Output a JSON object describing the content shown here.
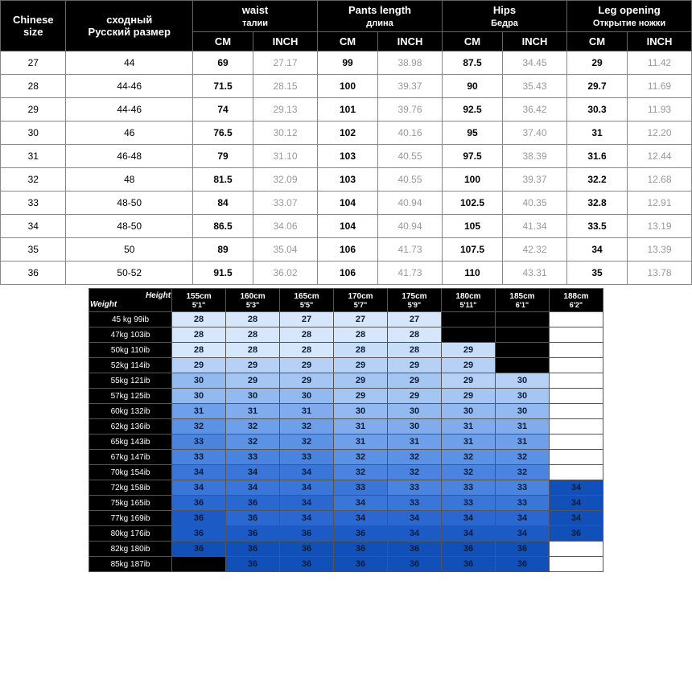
{
  "sizeTable": {
    "headers": {
      "chinese": "Chinese\nsize",
      "russian_top": "сходный",
      "russian_bot": "Русский размер",
      "groups": [
        {
          "top": "waist",
          "bot": "талии",
          "cm": "CM",
          "inch": "INCH"
        },
        {
          "top": "Pants length",
          "bot": "длина",
          "cm": "CM",
          "inch": "INCH"
        },
        {
          "top": "Hips",
          "bot": "Бедра",
          "cm": "CM",
          "inch": "INCH"
        },
        {
          "top": "Leg opening",
          "bot": "Открытие ножки",
          "cm": "CM",
          "inch": "INCH"
        }
      ]
    },
    "rows": [
      {
        "ch": "27",
        "ru": "44",
        "waist": {
          "cm": "69",
          "in": "27.17"
        },
        "len": {
          "cm": "99",
          "in": "38.98"
        },
        "hips": {
          "cm": "87.5",
          "in": "34.45"
        },
        "leg": {
          "cm": "29",
          "in": "11.42"
        }
      },
      {
        "ch": "28",
        "ru": "44-46",
        "waist": {
          "cm": "71.5",
          "in": "28.15"
        },
        "len": {
          "cm": "100",
          "in": "39.37"
        },
        "hips": {
          "cm": "90",
          "in": "35.43"
        },
        "leg": {
          "cm": "29.7",
          "in": "11.69"
        }
      },
      {
        "ch": "29",
        "ru": "44-46",
        "waist": {
          "cm": "74",
          "in": "29.13"
        },
        "len": {
          "cm": "101",
          "in": "39.76"
        },
        "hips": {
          "cm": "92.5",
          "in": "36.42"
        },
        "leg": {
          "cm": "30.3",
          "in": "11.93"
        }
      },
      {
        "ch": "30",
        "ru": "46",
        "waist": {
          "cm": "76.5",
          "in": "30.12"
        },
        "len": {
          "cm": "102",
          "in": "40.16"
        },
        "hips": {
          "cm": "95",
          "in": "37.40"
        },
        "leg": {
          "cm": "31",
          "in": "12.20"
        }
      },
      {
        "ch": "31",
        "ru": "46-48",
        "waist": {
          "cm": "79",
          "in": "31.10"
        },
        "len": {
          "cm": "103",
          "in": "40.55"
        },
        "hips": {
          "cm": "97.5",
          "in": "38.39"
        },
        "leg": {
          "cm": "31.6",
          "in": "12.44"
        }
      },
      {
        "ch": "32",
        "ru": "48",
        "waist": {
          "cm": "81.5",
          "in": "32.09"
        },
        "len": {
          "cm": "103",
          "in": "40.55"
        },
        "hips": {
          "cm": "100",
          "in": "39.37"
        },
        "leg": {
          "cm": "32.2",
          "in": "12.68"
        }
      },
      {
        "ch": "33",
        "ru": "48-50",
        "waist": {
          "cm": "84",
          "in": "33.07"
        },
        "len": {
          "cm": "104",
          "in": "40.94"
        },
        "hips": {
          "cm": "102.5",
          "in": "40.35"
        },
        "leg": {
          "cm": "32.8",
          "in": "12.91"
        }
      },
      {
        "ch": "34",
        "ru": "48-50",
        "waist": {
          "cm": "86.5",
          "in": "34.06"
        },
        "len": {
          "cm": "104",
          "in": "40.94"
        },
        "hips": {
          "cm": "105",
          "in": "41.34"
        },
        "leg": {
          "cm": "33.5",
          "in": "13.19"
        }
      },
      {
        "ch": "35",
        "ru": "50",
        "waist": {
          "cm": "89",
          "in": "35.04"
        },
        "len": {
          "cm": "106",
          "in": "41.73"
        },
        "hips": {
          "cm": "107.5",
          "in": "42.32"
        },
        "leg": {
          "cm": "34",
          "in": "13.39"
        }
      },
      {
        "ch": "36",
        "ru": "50-52",
        "waist": {
          "cm": "91.5",
          "in": "36.02"
        },
        "len": {
          "cm": "106",
          "in": "41.73"
        },
        "hips": {
          "cm": "110",
          "in": "43.31"
        },
        "leg": {
          "cm": "35",
          "in": "13.78"
        }
      }
    ]
  },
  "recTable": {
    "corner": {
      "t1": "Height",
      "t2": "Weight"
    },
    "heights": [
      {
        "a": "155cm",
        "b": "5'1\""
      },
      {
        "a": "160cm",
        "b": "5'3\""
      },
      {
        "a": "165cm",
        "b": "5'5\""
      },
      {
        "a": "170cm",
        "b": "5'7\""
      },
      {
        "a": "175cm",
        "b": "5'9\""
      },
      {
        "a": "180cm",
        "b": "5'11\""
      },
      {
        "a": "185cm",
        "b": "6'1\""
      },
      {
        "a": "188cm",
        "b": "6'2\""
      }
    ],
    "rows": [
      {
        "w": "45 kg 99ib",
        "cells": [
          [
            "28",
            "c0"
          ],
          [
            "28",
            "c0"
          ],
          [
            "27",
            "c0"
          ],
          [
            "27",
            "c0"
          ],
          [
            "27",
            "c0"
          ],
          null,
          null,
          "blank"
        ]
      },
      {
        "w": "47kg 103ib",
        "cells": [
          [
            "28",
            "c0"
          ],
          [
            "28",
            "c0"
          ],
          [
            "28",
            "c0"
          ],
          [
            "28",
            "c0"
          ],
          [
            "28",
            "c0"
          ],
          null,
          null,
          "blank"
        ]
      },
      {
        "w": "50kg 110ib",
        "cells": [
          [
            "28",
            "c0"
          ],
          [
            "28",
            "c0"
          ],
          [
            "28",
            "c0"
          ],
          [
            "28",
            "c1"
          ],
          [
            "28",
            "c1"
          ],
          [
            "29",
            "c1"
          ],
          null,
          "blank"
        ]
      },
      {
        "w": "52kg 114ib",
        "cells": [
          [
            "29",
            "c2"
          ],
          [
            "29",
            "c2"
          ],
          [
            "29",
            "c2"
          ],
          [
            "29",
            "c2"
          ],
          [
            "29",
            "c2"
          ],
          [
            "29",
            "c2"
          ],
          null,
          "blank"
        ]
      },
      {
        "w": "55kg 121ib",
        "cells": [
          [
            "30",
            "c4"
          ],
          [
            "29",
            "c3"
          ],
          [
            "29",
            "c3"
          ],
          [
            "29",
            "c3"
          ],
          [
            "29",
            "c3"
          ],
          [
            "29",
            "c2"
          ],
          [
            "30",
            "c2"
          ],
          "blank"
        ]
      },
      {
        "w": "57kg 125ib",
        "cells": [
          [
            "30",
            "c4"
          ],
          [
            "30",
            "c4"
          ],
          [
            "30",
            "c4"
          ],
          [
            "29",
            "c3"
          ],
          [
            "29",
            "c3"
          ],
          [
            "29",
            "c3"
          ],
          [
            "30",
            "c3"
          ],
          "blank"
        ]
      },
      {
        "w": "60kg 132ib",
        "cells": [
          [
            "31",
            "c6"
          ],
          [
            "31",
            "c5"
          ],
          [
            "31",
            "c5"
          ],
          [
            "30",
            "c4"
          ],
          [
            "30",
            "c4"
          ],
          [
            "30",
            "c4"
          ],
          [
            "30",
            "c4"
          ],
          "blank"
        ]
      },
      {
        "w": "62kg 136ib",
        "cells": [
          [
            "32",
            "c7"
          ],
          [
            "32",
            "c6"
          ],
          [
            "32",
            "c6"
          ],
          [
            "31",
            "c5"
          ],
          [
            "30",
            "c5"
          ],
          [
            "31",
            "c5"
          ],
          [
            "31",
            "c5"
          ],
          "blank"
        ]
      },
      {
        "w": "65kg 143ib",
        "cells": [
          [
            "33",
            "c8"
          ],
          [
            "32",
            "c7"
          ],
          [
            "32",
            "c7"
          ],
          [
            "31",
            "c6"
          ],
          [
            "31",
            "c6"
          ],
          [
            "31",
            "c6"
          ],
          [
            "31",
            "c6"
          ],
          "blank"
        ]
      },
      {
        "w": "67kg 147ib",
        "cells": [
          [
            "33",
            "c8"
          ],
          [
            "33",
            "c8"
          ],
          [
            "33",
            "c8"
          ],
          [
            "32",
            "c7"
          ],
          [
            "32",
            "c7"
          ],
          [
            "32",
            "c7"
          ],
          [
            "32",
            "c7"
          ],
          "blank"
        ]
      },
      {
        "w": "70kg 154ib",
        "cells": [
          [
            "34",
            "c9"
          ],
          [
            "34",
            "c9"
          ],
          [
            "34",
            "c9"
          ],
          [
            "32",
            "c8"
          ],
          [
            "32",
            "c8"
          ],
          [
            "32",
            "c8"
          ],
          [
            "32",
            "c8"
          ],
          "blank"
        ]
      },
      {
        "w": "72kg 158ib",
        "cells": [
          [
            "34",
            "c9"
          ],
          [
            "34",
            "c9"
          ],
          [
            "34",
            "c9"
          ],
          [
            "33",
            "c9"
          ],
          [
            "33",
            "c8"
          ],
          [
            "33",
            "c8"
          ],
          [
            "33",
            "c8"
          ],
          [
            "34",
            "c12"
          ]
        ]
      },
      {
        "w": "75kg 165ib",
        "cells": [
          [
            "36",
            "c10"
          ],
          [
            "36",
            "c10"
          ],
          [
            "34",
            "c10"
          ],
          [
            "34",
            "c9"
          ],
          [
            "33",
            "c9"
          ],
          [
            "33",
            "c9"
          ],
          [
            "33",
            "c9"
          ],
          [
            "34",
            "c12"
          ]
        ]
      },
      {
        "w": "77kg 169ib",
        "cells": [
          [
            "36",
            "c11"
          ],
          [
            "36",
            "c10"
          ],
          [
            "34",
            "c10"
          ],
          [
            "34",
            "c10"
          ],
          [
            "34",
            "c10"
          ],
          [
            "34",
            "c10"
          ],
          [
            "34",
            "c10"
          ],
          [
            "34",
            "c12"
          ]
        ]
      },
      {
        "w": "80kg 176ib",
        "cells": [
          [
            "36",
            "c11"
          ],
          [
            "36",
            "c11"
          ],
          [
            "36",
            "c11"
          ],
          [
            "36",
            "c11"
          ],
          [
            "34",
            "c11"
          ],
          [
            "34",
            "c11"
          ],
          [
            "34",
            "c11"
          ],
          [
            "36",
            "c12"
          ]
        ]
      },
      {
        "w": "82kg 180ib",
        "cells": [
          [
            "36",
            "c12"
          ],
          [
            "36",
            "c12"
          ],
          [
            "36",
            "c12"
          ],
          [
            "36",
            "c12"
          ],
          [
            "36",
            "c12"
          ],
          [
            "36",
            "c12"
          ],
          [
            "36",
            "c12"
          ],
          "blank"
        ]
      },
      {
        "w": "85kg 187ib",
        "cells": [
          null,
          [
            "36",
            "c12"
          ],
          [
            "36",
            "c12"
          ],
          [
            "36",
            "c12"
          ],
          [
            "36",
            "c12"
          ],
          [
            "36",
            "c12"
          ],
          [
            "36",
            "c12"
          ],
          "blank"
        ]
      }
    ]
  }
}
